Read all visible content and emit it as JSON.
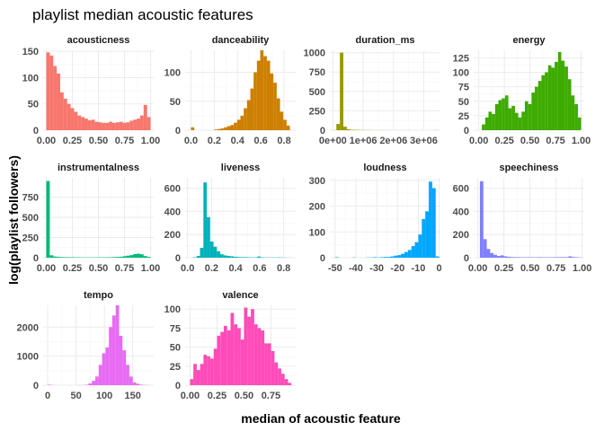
{
  "chart_data": {
    "type": "bar",
    "title": "playlist median acoustic features",
    "xlabel": "median of acoustic feature",
    "ylabel": "log(playlist followers)",
    "grid": true,
    "legend": "none",
    "panels": [
      {
        "name": "acousticness",
        "color": "#F8766D",
        "xlim": [
          -0.03,
          1.03
        ],
        "ylim": [
          0,
          152
        ],
        "xticks": [
          0,
          0.25,
          0.5,
          0.75,
          1
        ],
        "xtick_labels": [
          "0.00",
          "0.25",
          "0.50",
          "0.75",
          "1.00"
        ],
        "yticks": [
          0,
          50,
          100,
          150
        ],
        "ytick_labels": [
          "0",
          "50",
          "100",
          "150"
        ],
        "bins": [
          0,
          0.0333,
          0.0667,
          0.1,
          0.1333,
          0.1667,
          0.2,
          0.2333,
          0.2667,
          0.3,
          0.3333,
          0.3667,
          0.4,
          0.4333,
          0.4667,
          0.5,
          0.5333,
          0.5667,
          0.6,
          0.6333,
          0.6667,
          0.7,
          0.7333,
          0.7667,
          0.8,
          0.8333,
          0.8667,
          0.9,
          0.9333,
          0.9667,
          1.0
        ],
        "values": [
          148,
          142,
          122,
          108,
          72,
          60,
          50,
          42,
          35,
          28,
          25,
          22,
          19,
          20,
          16,
          15,
          14,
          14,
          16,
          14,
          15,
          16,
          14,
          15,
          18,
          20,
          22,
          28,
          48,
          25
        ]
      },
      {
        "name": "danceability",
        "color": "#CD7F00",
        "xlim": [
          -0.05,
          0.9
        ],
        "ylim": [
          0,
          138
        ],
        "xticks": [
          0,
          0.2,
          0.4,
          0.6,
          0.8
        ],
        "xtick_labels": [
          "0.0",
          "0.2",
          "0.4",
          "0.6",
          "0.8"
        ],
        "yticks": [
          0,
          50,
          100
        ],
        "ytick_labels": [
          "0",
          "50",
          "100"
        ],
        "bins": [
          0,
          0.0283,
          0.0567,
          0.085,
          0.1133,
          0.1417,
          0.17,
          0.1983,
          0.2267,
          0.255,
          0.2833,
          0.3117,
          0.34,
          0.3683,
          0.3967,
          0.425,
          0.4533,
          0.4817,
          0.51,
          0.5383,
          0.5667,
          0.595,
          0.6233,
          0.6517,
          0.68,
          0.7083,
          0.7367,
          0.765,
          0.7933,
          0.8217,
          0.85
        ],
        "values": [
          5,
          0,
          0,
          0,
          0,
          0,
          0,
          1,
          2,
          3,
          5,
          7,
          9,
          13,
          18,
          25,
          38,
          52,
          72,
          100,
          120,
          138,
          128,
          120,
          98,
          82,
          55,
          32,
          18,
          8
        ]
      },
      {
        "name": "duration_ms",
        "color": "#999900",
        "xlim": [
          -100000,
          3550000
        ],
        "ylim": [
          0,
          1030
        ],
        "xticks": [
          0,
          1000000,
          2000000,
          3000000
        ],
        "xtick_labels": [
          "0e+00",
          "1e+06",
          "2e+06",
          "3e+06"
        ],
        "yticks": [
          0,
          250,
          500,
          750,
          1000
        ],
        "ytick_labels": [
          "0",
          "250",
          "500",
          "750",
          "1000"
        ],
        "bins": [
          0,
          115000,
          230000,
          345000,
          460000,
          575000,
          690000,
          805000,
          920000,
          1035000,
          1150000,
          1265000,
          1380000,
          1495000,
          1610000,
          1725000,
          1840000,
          1955000,
          2070000,
          2185000,
          2300000,
          2415000,
          2530000,
          2645000,
          2760000,
          2875000,
          2990000,
          3105000,
          3220000,
          3335000,
          3450000
        ],
        "values": [
          2,
          80,
          1000,
          45,
          12,
          6,
          4,
          3,
          3,
          2,
          2,
          1,
          1,
          1,
          1,
          1,
          1,
          0,
          1,
          0,
          0,
          1,
          0,
          0,
          0,
          0,
          0,
          0,
          0,
          1
        ]
      },
      {
        "name": "energy",
        "color": "#3DAB00",
        "xlim": [
          -0.05,
          1.03
        ],
        "ylim": [
          0,
          138
        ],
        "xticks": [
          0,
          0.25,
          0.5,
          0.75,
          1
        ],
        "xtick_labels": [
          "0.00",
          "0.25",
          "0.50",
          "0.75",
          "1.00"
        ],
        "yticks": [
          0,
          25,
          50,
          75,
          100,
          125
        ],
        "ytick_labels": [
          "0",
          "25",
          "50",
          "75",
          "100",
          "125"
        ],
        "bins": [
          0.03,
          0.0623,
          0.0947,
          0.127,
          0.1593,
          0.1917,
          0.224,
          0.2563,
          0.2887,
          0.321,
          0.3533,
          0.3857,
          0.418,
          0.4503,
          0.4827,
          0.515,
          0.5473,
          0.58,
          0.612,
          0.645,
          0.677,
          0.709,
          0.741,
          0.774,
          0.806,
          0.838,
          0.871,
          0.903,
          0.935,
          0.968,
          1.0
        ],
        "values": [
          10,
          22,
          32,
          28,
          45,
          52,
          55,
          60,
          38,
          42,
          30,
          22,
          32,
          50,
          45,
          65,
          75,
          85,
          95,
          100,
          112,
          108,
          118,
          135,
          120,
          110,
          88,
          60,
          45,
          22
        ]
      },
      {
        "name": "instrumentalness",
        "color": "#00BA72",
        "xlim": [
          -0.03,
          1.03
        ],
        "ylim": [
          0,
          990
        ],
        "xticks": [
          0,
          0.25,
          0.5,
          0.75,
          1
        ],
        "xtick_labels": [
          "0.00",
          "0.25",
          "0.50",
          "0.75",
          "1.00"
        ],
        "yticks": [
          0,
          250,
          500,
          750
        ],
        "ytick_labels": [
          "0",
          "250",
          "500",
          "750"
        ],
        "bins": [
          0,
          0.0333,
          0.0667,
          0.1,
          0.1333,
          0.1667,
          0.2,
          0.2333,
          0.2667,
          0.3,
          0.3333,
          0.3667,
          0.4,
          0.4333,
          0.4667,
          0.5,
          0.5333,
          0.5667,
          0.6,
          0.6333,
          0.6667,
          0.7,
          0.7333,
          0.7667,
          0.8,
          0.8333,
          0.8667,
          0.9,
          0.9333,
          0.9667,
          1.0
        ],
        "values": [
          950,
          30,
          15,
          10,
          8,
          7,
          6,
          6,
          5,
          5,
          4,
          4,
          4,
          4,
          4,
          5,
          5,
          5,
          6,
          8,
          10,
          12,
          18,
          25,
          32,
          45,
          50,
          42,
          20,
          10
        ]
      },
      {
        "name": "liveness",
        "color": "#00B1B9",
        "xlim": [
          -0.02,
          0.9
        ],
        "ylim": [
          0,
          690
        ],
        "xticks": [
          0,
          0.2,
          0.4,
          0.6,
          0.8
        ],
        "xtick_labels": [
          "0.0",
          "0.2",
          "0.4",
          "0.6",
          "0.8"
        ],
        "yticks": [
          0,
          200,
          400,
          600
        ],
        "ytick_labels": [
          "0",
          "200",
          "400",
          "600"
        ],
        "bins": [
          0.02,
          0.048,
          0.076,
          0.104,
          0.132,
          0.16,
          0.188,
          0.216,
          0.244,
          0.272,
          0.3,
          0.328,
          0.356,
          0.384,
          0.412,
          0.44,
          0.468,
          0.496,
          0.524,
          0.552,
          0.58,
          0.608,
          0.636,
          0.664,
          0.692,
          0.72,
          0.748,
          0.776,
          0.804,
          0.832,
          0.86
        ],
        "values": [
          0,
          4,
          15,
          85,
          650,
          350,
          140,
          95,
          55,
          30,
          20,
          15,
          12,
          8,
          6,
          5,
          5,
          4,
          3,
          3,
          10,
          3,
          2,
          2,
          2,
          2,
          3,
          2,
          1,
          1
        ]
      },
      {
        "name": "loudness",
        "color": "#00A7FF",
        "xlim": [
          -52.5,
          0.6
        ],
        "ylim": [
          0,
          310
        ],
        "xticks": [
          -50,
          -40,
          -30,
          -20,
          -10,
          0
        ],
        "xtick_labels": [
          "-50",
          "-40",
          "-30",
          "-20",
          "-10",
          "0"
        ],
        "yticks": [
          0,
          100,
          200,
          300
        ],
        "ytick_labels": [
          "0",
          "100",
          "200",
          "300"
        ],
        "bins": [
          -50,
          -48.33,
          -46.67,
          -45,
          -43.33,
          -41.67,
          -40,
          -38.33,
          -36.67,
          -35,
          -33.33,
          -31.67,
          -30,
          -28.33,
          -26.67,
          -25,
          -23.33,
          -21.67,
          -20,
          -18.33,
          -16.67,
          -15,
          -13.33,
          -11.67,
          -10,
          -8.33,
          -6.67,
          -5,
          -3.33,
          -1.67,
          0
        ],
        "values": [
          2,
          0,
          0,
          0,
          0,
          1,
          0,
          0,
          0,
          1,
          1,
          2,
          1,
          2,
          3,
          3,
          5,
          8,
          10,
          15,
          22,
          30,
          45,
          60,
          90,
          150,
          180,
          295,
          270,
          5
        ]
      },
      {
        "name": "speechiness",
        "color": "#7F7FFF",
        "xlim": [
          -0.04,
          1.02
        ],
        "ylim": [
          0,
          690
        ],
        "xticks": [
          0,
          0.25,
          0.5,
          0.75,
          1
        ],
        "xtick_labels": [
          "0.00",
          "0.25",
          "0.50",
          "0.75",
          "1.00"
        ],
        "yticks": [
          0,
          200,
          400,
          600
        ],
        "ytick_labels": [
          "0",
          "200",
          "400",
          "600"
        ],
        "bins": [
          0.02,
          0.0527,
          0.0853,
          0.118,
          0.1507,
          0.1833,
          0.216,
          0.2487,
          0.2813,
          0.314,
          0.3467,
          0.3793,
          0.412,
          0.4447,
          0.4773,
          0.51,
          0.5427,
          0.5753,
          0.608,
          0.6407,
          0.6733,
          0.706,
          0.7387,
          0.7713,
          0.804,
          0.8367,
          0.8693,
          0.902,
          0.9347,
          0.9673,
          1.0
        ],
        "values": [
          660,
          160,
          75,
          40,
          25,
          15,
          20,
          12,
          8,
          6,
          5,
          5,
          4,
          4,
          4,
          4,
          4,
          5,
          4,
          4,
          4,
          4,
          5,
          5,
          5,
          5,
          12,
          6,
          4,
          2
        ]
      },
      {
        "name": "tempo",
        "color": "#E76BF3",
        "xlim": [
          -8,
          187
        ],
        "ylim": [
          0,
          2750
        ],
        "xticks": [
          0,
          50,
          100,
          150
        ],
        "xtick_labels": [
          "0",
          "50",
          "100",
          "150"
        ],
        "yticks": [
          0,
          1000,
          2000
        ],
        "ytick_labels": [
          "0",
          "1000",
          "2000"
        ],
        "bins": [
          0,
          6,
          12,
          18,
          24,
          30,
          36,
          42,
          48,
          54,
          60,
          66,
          72,
          78,
          84,
          90,
          96,
          102,
          108,
          114,
          120,
          126,
          132,
          138,
          144,
          150,
          156,
          162,
          168,
          174,
          180
        ],
        "values": [
          15,
          5,
          0,
          0,
          0,
          0,
          0,
          0,
          0,
          3,
          5,
          15,
          60,
          150,
          300,
          700,
          1100,
          1300,
          2000,
          2400,
          2750,
          1700,
          1200,
          700,
          300,
          100,
          50,
          20,
          10,
          5
        ]
      },
      {
        "name": "valence",
        "color": "#FF4BB8",
        "xlim": [
          -0.045,
          0.98
        ],
        "ylim": [
          0,
          105
        ],
        "xticks": [
          0,
          0.25,
          0.5,
          0.75
        ],
        "xtick_labels": [
          "0.00",
          "0.25",
          "0.50",
          "0.75"
        ],
        "yticks": [
          0,
          25,
          50,
          75,
          100
        ],
        "ytick_labels": [
          "0",
          "25",
          "50",
          "75",
          "100"
        ],
        "bins": [
          0,
          0.0313,
          0.0627,
          0.094,
          0.1253,
          0.1567,
          0.188,
          0.2193,
          0.2507,
          0.282,
          0.3133,
          0.3447,
          0.376,
          0.4073,
          0.4387,
          0.47,
          0.5013,
          0.5327,
          0.564,
          0.5953,
          0.6267,
          0.658,
          0.6893,
          0.7207,
          0.752,
          0.7833,
          0.8147,
          0.846,
          0.8773,
          0.9087,
          0.94
        ],
        "values": [
          8,
          28,
          20,
          28,
          40,
          38,
          35,
          48,
          65,
          70,
          78,
          72,
          95,
          80,
          75,
          60,
          102,
          90,
          100,
          80,
          75,
          72,
          55,
          55,
          45,
          30,
          22,
          15,
          8,
          3
        ]
      }
    ]
  }
}
